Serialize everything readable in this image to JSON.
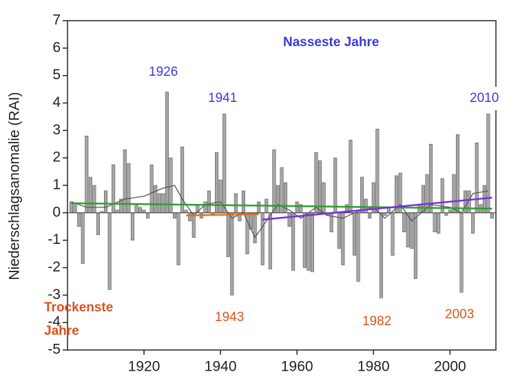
{
  "chart_data": {
    "type": "bar",
    "y_label": "Niederschlagsanomalie (RAI)",
    "xlim": [
      1900,
      2012
    ],
    "ylim": [
      -5,
      7
    ],
    "xticks": [
      1920,
      1940,
      1960,
      1980,
      2000
    ],
    "yticks": [
      -5,
      -4,
      -3,
      -2,
      -1,
      0,
      1,
      2,
      3,
      4,
      5,
      6,
      7
    ],
    "color": "#a6a6a6",
    "x": [
      1901,
      1902,
      1903,
      1904,
      1905,
      1906,
      1907,
      1908,
      1909,
      1910,
      1911,
      1912,
      1913,
      1914,
      1915,
      1916,
      1917,
      1918,
      1919,
      1920,
      1921,
      1922,
      1923,
      1924,
      1925,
      1926,
      1927,
      1928,
      1929,
      1930,
      1931,
      1932,
      1933,
      1934,
      1935,
      1936,
      1937,
      1938,
      1939,
      1940,
      1941,
      1942,
      1943,
      1944,
      1945,
      1946,
      1947,
      1948,
      1949,
      1950,
      1951,
      1952,
      1953,
      1954,
      1955,
      1956,
      1957,
      1958,
      1959,
      1960,
      1961,
      1962,
      1963,
      1964,
      1965,
      1966,
      1967,
      1968,
      1969,
      1970,
      1971,
      1972,
      1973,
      1974,
      1975,
      1976,
      1977,
      1978,
      1979,
      1980,
      1981,
      1982,
      1983,
      1984,
      1985,
      1986,
      1987,
      1988,
      1989,
      1990,
      1991,
      1992,
      1993,
      1994,
      1995,
      1996,
      1997,
      1998,
      1999,
      2000,
      2001,
      2002,
      2003,
      2004,
      2005,
      2006,
      2007,
      2008,
      2009,
      2010,
      2011
    ],
    "values": [
      0.4,
      0.3,
      -0.5,
      -1.85,
      2.8,
      1.3,
      1.0,
      -0.8,
      0.05,
      0.8,
      -2.8,
      1.75,
      0.1,
      0.5,
      2.3,
      1.8,
      -1.0,
      0.3,
      0.2,
      0.1,
      -0.2,
      1.75,
      1.0,
      0.7,
      0.7,
      4.4,
      2.0,
      -0.2,
      -1.9,
      2.4,
      0.1,
      -0.3,
      -0.9,
      0.3,
      -0.2,
      0.4,
      0.8,
      -0.1,
      2.2,
      1.2,
      3.6,
      -1.6,
      -3.0,
      0.7,
      -0.3,
      0.8,
      -1.5,
      -0.6,
      -1.1,
      0.4,
      -1.9,
      0.5,
      -2.05,
      2.3,
      1.0,
      1.65,
      1.1,
      -0.5,
      -2.1,
      0.4,
      0.3,
      -2.0,
      -2.1,
      -2.15,
      2.2,
      1.9,
      1.1,
      -0.1,
      -0.7,
      2.0,
      -1.3,
      -1.9,
      0.3,
      2.65,
      -1.55,
      -2.5,
      1.3,
      0.5,
      -0.2,
      1.1,
      3.05,
      -3.1,
      -0.1,
      0.2,
      -1.55,
      1.35,
      1.45,
      -0.7,
      -1.25,
      -1.3,
      -2.4,
      0.3,
      1.0,
      1.4,
      2.5,
      -0.7,
      -0.75,
      1.25,
      -0.1,
      0.1,
      1.4,
      2.85,
      -2.9,
      0.8,
      0.8,
      -0.75,
      2.55,
      0.3,
      1.0,
      3.6,
      -0.2
    ],
    "lines": [
      {
        "color": "#555555",
        "x": [
          1901,
          1905,
          1910,
          1915,
          1920,
          1925,
          1928,
          1930,
          1933,
          1936,
          1940,
          1943,
          1946,
          1949,
          1952,
          1955,
          1958,
          1961,
          1965,
          1968,
          1972,
          1975,
          1980,
          1983,
          1987,
          1990,
          1995,
          2000,
          2003,
          2006,
          2010
        ],
        "values": [
          0.4,
          0.2,
          0.2,
          0.5,
          0.6,
          0.9,
          1.0,
          0.5,
          -0.1,
          0.3,
          0.4,
          -0.2,
          0.0,
          -0.9,
          -0.3,
          0.3,
          0.1,
          -0.2,
          0.2,
          -0.1,
          -0.2,
          0.0,
          0.2,
          -0.2,
          0.3,
          -0.3,
          0.3,
          0.2,
          0.0,
          0.7,
          0.8
        ]
      },
      {
        "color": "#2ca02c",
        "x": [
          1901,
          2011
        ],
        "values": [
          0.35,
          0.15
        ]
      },
      {
        "color": "#e0701a",
        "x": [
          1931,
          1950
        ],
        "values": [
          -0.1,
          -0.05
        ]
      },
      {
        "color": "#7b2fe0",
        "x": [
          1951,
          2011
        ],
        "values": [
          -0.25,
          0.55
        ]
      }
    ],
    "annotations": [
      {
        "text": "Nasseste Jahre",
        "color": "#3a3ae0",
        "bold": true
      },
      {
        "text": "1926",
        "color": "#3a3ae0",
        "bold": false
      },
      {
        "text": "1941",
        "color": "#3a3ae0",
        "bold": false
      },
      {
        "text": "2010",
        "color": "#3a3ae0",
        "bold": false
      },
      {
        "text": "Trockenste Jahre",
        "color": "#d9541e",
        "bold": true
      },
      {
        "text": "1943",
        "color": "#d9541e",
        "bold": false
      },
      {
        "text": "1982",
        "color": "#d9541e",
        "bold": false
      },
      {
        "text": "2003",
        "color": "#d9541e",
        "bold": false
      }
    ]
  }
}
